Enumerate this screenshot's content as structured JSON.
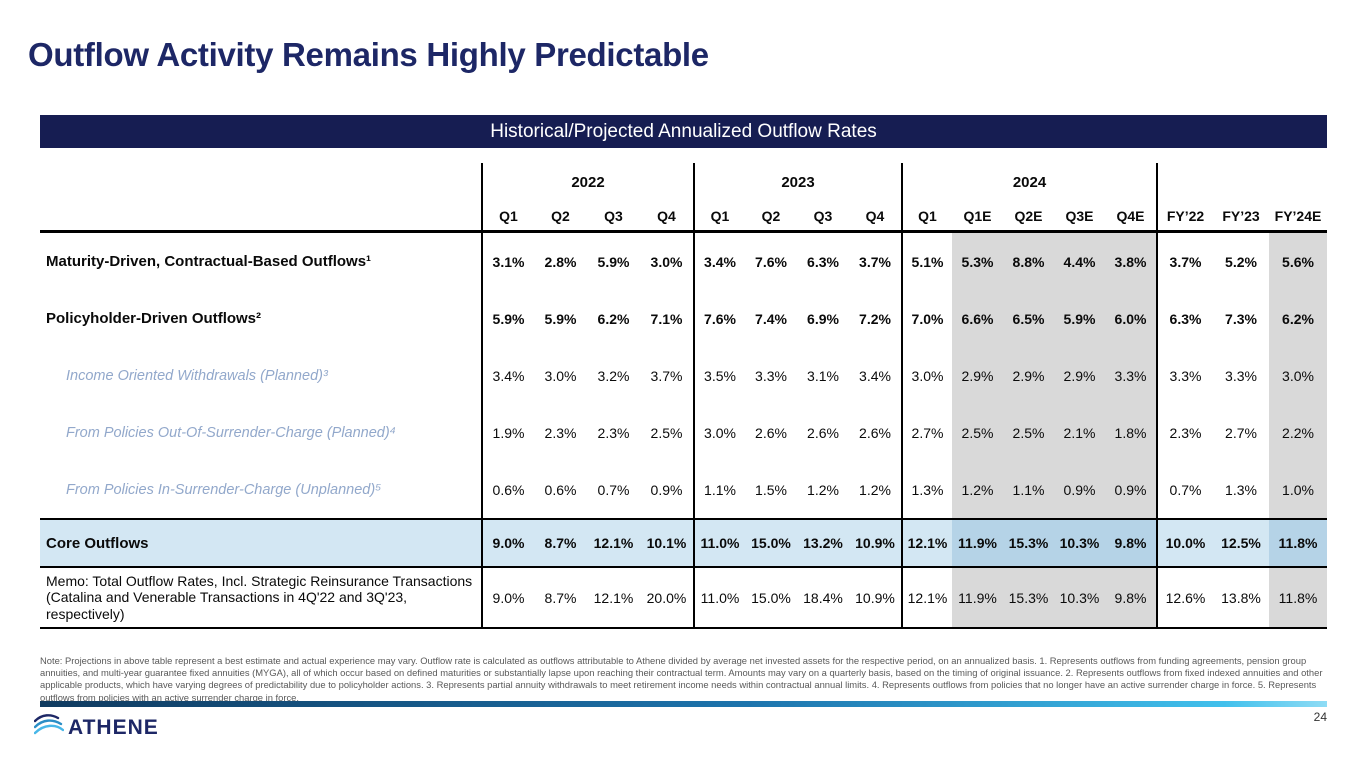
{
  "slide": {
    "title": "Outflow Activity Remains Highly Predictable",
    "page_number": "24",
    "logo_text": "ATHENE"
  },
  "colors": {
    "title_navy": "#1d2766",
    "banner_navy": "#161d52",
    "core_row_blue": "#d3e7f3",
    "core_row_estimate_blue": "#b5d3e7",
    "estimate_gray": "#d9d9d9",
    "sub_label_blue": "#92a8cb",
    "gradient_left": "#0f3a5f",
    "gradient_right": "#41c0ec"
  },
  "table": {
    "banner": "Historical/Projected Annualized Outflow Rates",
    "year_groups": [
      {
        "label": "2022",
        "cols": [
          "Q1",
          "Q2",
          "Q3",
          "Q4"
        ]
      },
      {
        "label": "2023",
        "cols": [
          "Q1",
          "Q2",
          "Q3",
          "Q4"
        ]
      },
      {
        "label": "2024",
        "cols": [
          "Q1",
          "Q1E",
          "Q2E",
          "Q3E",
          "Q4E"
        ]
      },
      {
        "label": "",
        "cols": [
          "FY’22",
          "FY’23",
          "FY’24E"
        ]
      }
    ],
    "group_start_cols": [
      0,
      4,
      8,
      13
    ],
    "estimate_cols": [
      9,
      10,
      11,
      12,
      15
    ],
    "rows": [
      {
        "label": "Maturity-Driven, Contractual-Based Outflows¹",
        "style": "main",
        "values": [
          "3.1%",
          "2.8%",
          "5.9%",
          "3.0%",
          "3.4%",
          "7.6%",
          "6.3%",
          "3.7%",
          "5.1%",
          "5.3%",
          "8.8%",
          "4.4%",
          "3.8%",
          "3.7%",
          "5.2%",
          "5.6%"
        ]
      },
      {
        "label": "Policyholder-Driven Outflows²",
        "style": "main",
        "values": [
          "5.9%",
          "5.9%",
          "6.2%",
          "7.1%",
          "7.6%",
          "7.4%",
          "6.9%",
          "7.2%",
          "7.0%",
          "6.6%",
          "6.5%",
          "5.9%",
          "6.0%",
          "6.3%",
          "7.3%",
          "6.2%"
        ]
      },
      {
        "label": "Income Oriented Withdrawals (Planned)³",
        "style": "sub",
        "values": [
          "3.4%",
          "3.0%",
          "3.2%",
          "3.7%",
          "3.5%",
          "3.3%",
          "3.1%",
          "3.4%",
          "3.0%",
          "2.9%",
          "2.9%",
          "2.9%",
          "3.3%",
          "3.3%",
          "3.3%",
          "3.0%"
        ]
      },
      {
        "label": "From Policies Out-Of-Surrender-Charge (Planned)⁴",
        "style": "sub",
        "values": [
          "1.9%",
          "2.3%",
          "2.3%",
          "2.5%",
          "3.0%",
          "2.6%",
          "2.6%",
          "2.6%",
          "2.7%",
          "2.5%",
          "2.5%",
          "2.1%",
          "1.8%",
          "2.3%",
          "2.7%",
          "2.2%"
        ]
      },
      {
        "label": "From Policies In-Surrender-Charge (Unplanned)⁵",
        "style": "sub",
        "values": [
          "0.6%",
          "0.6%",
          "0.7%",
          "0.9%",
          "1.1%",
          "1.5%",
          "1.2%",
          "1.2%",
          "1.3%",
          "1.2%",
          "1.1%",
          "0.9%",
          "0.9%",
          "0.7%",
          "1.3%",
          "1.0%"
        ]
      },
      {
        "label": "Core Outflows",
        "style": "core",
        "values": [
          "9.0%",
          "8.7%",
          "12.1%",
          "10.1%",
          "11.0%",
          "15.0%",
          "13.2%",
          "10.9%",
          "12.1%",
          "11.9%",
          "15.3%",
          "10.3%",
          "9.8%",
          "10.0%",
          "12.5%",
          "11.8%"
        ]
      },
      {
        "label": "Memo: Total Outflow Rates, Incl. Strategic Reinsurance Transactions (Catalina and Venerable Transactions in 4Q'22 and 3Q'23, respectively)",
        "style": "memo",
        "values": [
          "9.0%",
          "8.7%",
          "12.1%",
          "20.0%",
          "11.0%",
          "15.0%",
          "18.4%",
          "10.9%",
          "12.1%",
          "11.9%",
          "15.3%",
          "10.3%",
          "9.8%",
          "12.6%",
          "13.8%",
          "11.8%"
        ]
      }
    ]
  },
  "footnote": "Note: Projections in above table represent a best estimate and actual experience may vary. Outflow rate is calculated as outflows attributable to Athene divided by average net invested assets for the respective period, on an annualized basis. 1. Represents outflows from funding agreements, pension group annuities, and multi-year guarantee fixed annuities (MYGA), all of which occur based on defined maturities or substantially lapse upon reaching their contractual term. Amounts may vary on a quarterly basis, based on the timing of original issuance. 2. Represents outflows from fixed indexed annuities and other applicable products, which have varying degrees of predictability due to policyholder actions. 3. Represents partial annuity withdrawals to meet retirement income needs within contractual annual limits. 4. Represents outflows from policies that no longer have an active surrender charge in force. 5. Represents outflows from policies with an active surrender charge in force."
}
